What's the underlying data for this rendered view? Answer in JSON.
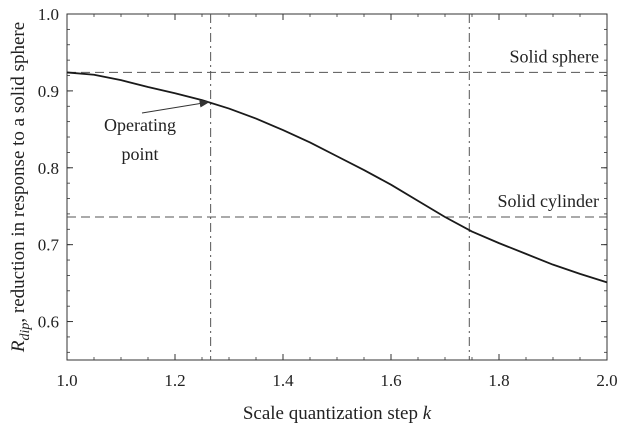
{
  "chart_data": {
    "type": "line",
    "xlabel": "Scale quantization step k",
    "xlabel_main": "Scale quantization step ",
    "xlabel_var": "k",
    "ylabel_symbol": "R",
    "ylabel_subscript": "dip",
    "ylabel_text": ", reduction in response to a solid sphere",
    "xlim": [
      1.0,
      2.0
    ],
    "ylim": [
      0.55,
      1.0
    ],
    "x_ticks": [
      1.0,
      1.2,
      1.4,
      1.6,
      1.8,
      2.0
    ],
    "x_tick_labels": [
      "1.0",
      "1.2",
      "1.4",
      "1.6",
      "1.8",
      "2.0"
    ],
    "y_ticks": [
      0.6,
      0.7,
      0.8,
      0.9,
      1.0
    ],
    "y_tick_labels": [
      "0.6",
      "0.7",
      "0.8",
      "0.9",
      "1.0"
    ],
    "grid": false,
    "series": [
      {
        "x": [
          1.0,
          1.05,
          1.1,
          1.15,
          1.2,
          1.25,
          1.3,
          1.35,
          1.4,
          1.45,
          1.5,
          1.55,
          1.6,
          1.65,
          1.7,
          1.75,
          1.8,
          1.85,
          1.9,
          1.95,
          2.0
        ],
        "y": [
          0.924,
          0.921,
          0.914,
          0.905,
          0.897,
          0.888,
          0.877,
          0.864,
          0.849,
          0.833,
          0.815,
          0.797,
          0.778,
          0.757,
          0.736,
          0.717,
          0.702,
          0.688,
          0.674,
          0.662,
          0.651
        ]
      }
    ],
    "reference_lines": {
      "horizontal": [
        {
          "y": 0.924,
          "label": "Solid sphere"
        },
        {
          "y": 0.736,
          "label": "Solid cylinder"
        }
      ],
      "vertical": [
        {
          "x": 1.266
        },
        {
          "x": 1.745
        }
      ]
    },
    "annotation": {
      "lines": [
        "Operating",
        "point"
      ],
      "points_to": {
        "x": 1.266,
        "y": 0.888
      }
    },
    "colors": {
      "line": "#1a1a1a",
      "reference": "#555555",
      "axes": "#333333"
    }
  }
}
